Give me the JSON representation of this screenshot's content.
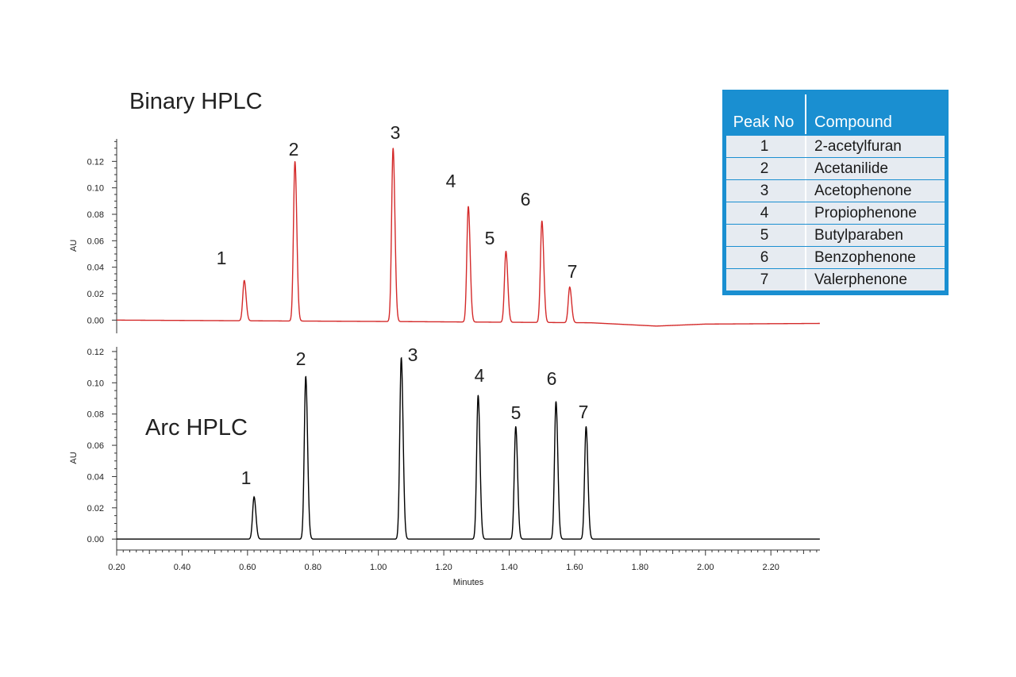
{
  "chart_data": [
    {
      "type": "line",
      "title": "Binary HPLC",
      "xlabel": "",
      "ylabel": "AU",
      "xlim": [
        0.2,
        2.35
      ],
      "ylim": [
        -0.01,
        0.137
      ],
      "yticks": [
        "0.00",
        "0.02",
        "0.04",
        "0.06",
        "0.08",
        "0.10",
        "0.12"
      ],
      "color": "#d42a2a",
      "baseline": [
        [
          0.2,
          0.0
        ],
        [
          1.0,
          -0.001
        ],
        [
          1.65,
          -0.002
        ],
        [
          1.85,
          -0.0045
        ],
        [
          2.0,
          -0.003
        ],
        [
          2.35,
          -0.0025
        ]
      ],
      "peaks": [
        {
          "label": "1",
          "x": 0.59,
          "y": 0.03
        },
        {
          "label": "2",
          "x": 0.745,
          "y": 0.12
        },
        {
          "label": "3",
          "x": 1.045,
          "y": 0.13
        },
        {
          "label": "4",
          "x": 1.275,
          "y": 0.086
        },
        {
          "label": "5",
          "x": 1.39,
          "y": 0.052
        },
        {
          "label": "6",
          "x": 1.5,
          "y": 0.075
        },
        {
          "label": "7",
          "x": 1.585,
          "y": 0.025
        }
      ]
    },
    {
      "type": "line",
      "title": "Arc HPLC",
      "xlabel": "Minutes",
      "ylabel": "AU",
      "xlim": [
        0.2,
        2.35
      ],
      "ylim": [
        -0.007,
        0.123
      ],
      "xticks": [
        "0.20",
        "0.40",
        "0.60",
        "0.80",
        "1.00",
        "1.20",
        "1.40",
        "1.60",
        "1.80",
        "2.00",
        "2.20"
      ],
      "yticks": [
        "0.00",
        "0.02",
        "0.04",
        "0.06",
        "0.08",
        "0.10",
        "0.12"
      ],
      "color": "#000000",
      "baseline": [
        [
          0.2,
          0.0
        ],
        [
          2.35,
          0.0
        ]
      ],
      "peaks": [
        {
          "label": "1",
          "x": 0.62,
          "y": 0.027
        },
        {
          "label": "2",
          "x": 0.778,
          "y": 0.104
        },
        {
          "label": "3",
          "x": 1.07,
          "y": 0.116
        },
        {
          "label": "4",
          "x": 1.305,
          "y": 0.092
        },
        {
          "label": "5",
          "x": 1.42,
          "y": 0.072
        },
        {
          "label": "6",
          "x": 1.543,
          "y": 0.088
        },
        {
          "label": "7",
          "x": 1.635,
          "y": 0.072
        }
      ]
    }
  ],
  "legend_table": {
    "header": {
      "col1": "Peak No",
      "col2": "Compound"
    },
    "rows": [
      {
        "no": "1",
        "compound": "2-acetylfuran"
      },
      {
        "no": "2",
        "compound": "Acetanilide"
      },
      {
        "no": "3",
        "compound": "Acetophenone"
      },
      {
        "no": "4",
        "compound": "Propiophenone"
      },
      {
        "no": "5",
        "compound": "Butylparaben"
      },
      {
        "no": "6",
        "compound": "Benzophenone"
      },
      {
        "no": "7",
        "compound": "Valerphenone"
      }
    ],
    "colors": {
      "background": "#1a8fd1",
      "row": "#e6ebf1"
    }
  }
}
